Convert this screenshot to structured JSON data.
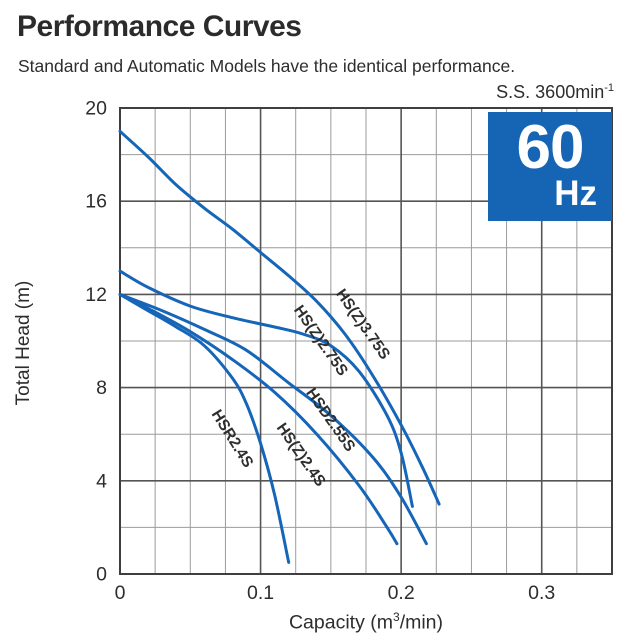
{
  "header": {
    "title": "Performance Curves",
    "subtitle": "Standard and Automatic Models have the identical performance.",
    "speed_note_main": "S.S. 3600min",
    "speed_note_sup": "-1"
  },
  "badge": {
    "frequency": "60",
    "unit": "Hz",
    "bg_color": "#1565b4",
    "text_color": "#ffffff"
  },
  "axis_titles": {
    "ylabel": "Total Head (m)",
    "xlabel_pre": "Capacity (m",
    "xlabel_sup": "3",
    "xlabel_post": "/min)"
  },
  "chart_data": {
    "type": "line",
    "title": "",
    "xlabel": "Capacity (m³/min)",
    "ylabel": "Total Head (m)",
    "xlim": [
      0,
      0.35
    ],
    "ylim": [
      0,
      20
    ],
    "grid": true,
    "x_minor_step": 0.025,
    "y_minor_step": 2,
    "x_major_ticks": [
      0,
      0.1,
      0.2,
      0.3
    ],
    "x_tick_labels": [
      "0",
      "0.1",
      "0.2",
      "0.3"
    ],
    "y_major_ticks": [
      0,
      4,
      8,
      12,
      16,
      20
    ],
    "y_tick_labels": [
      "0",
      "4",
      "8",
      "12",
      "16",
      "20"
    ],
    "legend_position": "labels-on-curves",
    "curve_color": "#1565b8",
    "grid_minor_color": "#9b9b9b",
    "grid_major_color": "#555555",
    "border_color": "#3f3f3f",
    "label_color": "#2e2e2e",
    "series": [
      {
        "name": "HS(Z)3.75S",
        "points": [
          [
            0,
            19
          ],
          [
            0.02,
            17.9
          ],
          [
            0.04,
            16.7
          ],
          [
            0.06,
            15.7
          ],
          [
            0.08,
            14.8
          ],
          [
            0.1,
            13.8
          ],
          [
            0.12,
            12.8
          ],
          [
            0.14,
            11.7
          ],
          [
            0.16,
            10.3
          ],
          [
            0.18,
            8.5
          ],
          [
            0.2,
            6.4
          ],
          [
            0.215,
            4.6
          ],
          [
            0.227,
            3.0
          ]
        ],
        "label": {
          "x": 0.17,
          "y": 10.6,
          "angle": 55
        }
      },
      {
        "name": "HS(Z)2.75S",
        "points": [
          [
            0,
            13
          ],
          [
            0.02,
            12.3
          ],
          [
            0.05,
            11.5
          ],
          [
            0.08,
            11.0
          ],
          [
            0.11,
            10.6
          ],
          [
            0.13,
            10.3
          ],
          [
            0.15,
            9.8
          ],
          [
            0.17,
            8.7
          ],
          [
            0.19,
            6.8
          ],
          [
            0.2,
            5.2
          ],
          [
            0.208,
            2.9
          ]
        ],
        "label": {
          "x": 0.14,
          "y": 9.9,
          "angle": 55
        }
      },
      {
        "name": "HSD2.55S",
        "points": [
          [
            0,
            12
          ],
          [
            0.03,
            11.3
          ],
          [
            0.06,
            10.5
          ],
          [
            0.09,
            9.6
          ],
          [
            0.12,
            8.2
          ],
          [
            0.15,
            6.8
          ],
          [
            0.18,
            5.0
          ],
          [
            0.2,
            3.3
          ],
          [
            0.218,
            1.3
          ]
        ],
        "label": {
          "x": 0.147,
          "y": 6.5,
          "angle": 55
        }
      },
      {
        "name": "HS(Z)2.4S",
        "points": [
          [
            0,
            12
          ],
          [
            0.02,
            11.4
          ],
          [
            0.05,
            10.4
          ],
          [
            0.08,
            9.2
          ],
          [
            0.11,
            7.8
          ],
          [
            0.14,
            6.0
          ],
          [
            0.17,
            3.8
          ],
          [
            0.19,
            2.0
          ],
          [
            0.197,
            1.3
          ]
        ],
        "label": {
          "x": 0.126,
          "y": 5.0,
          "angle": 55
        }
      },
      {
        "name": "HSR2.4S",
        "points": [
          [
            0,
            12
          ],
          [
            0.02,
            11.3
          ],
          [
            0.04,
            10.6
          ],
          [
            0.06,
            9.8
          ],
          [
            0.08,
            8.4
          ],
          [
            0.09,
            7.3
          ],
          [
            0.1,
            5.6
          ],
          [
            0.11,
            3.4
          ],
          [
            0.12,
            0.5
          ]
        ],
        "label": {
          "x": 0.077,
          "y": 5.7,
          "angle": 58
        }
      }
    ]
  }
}
